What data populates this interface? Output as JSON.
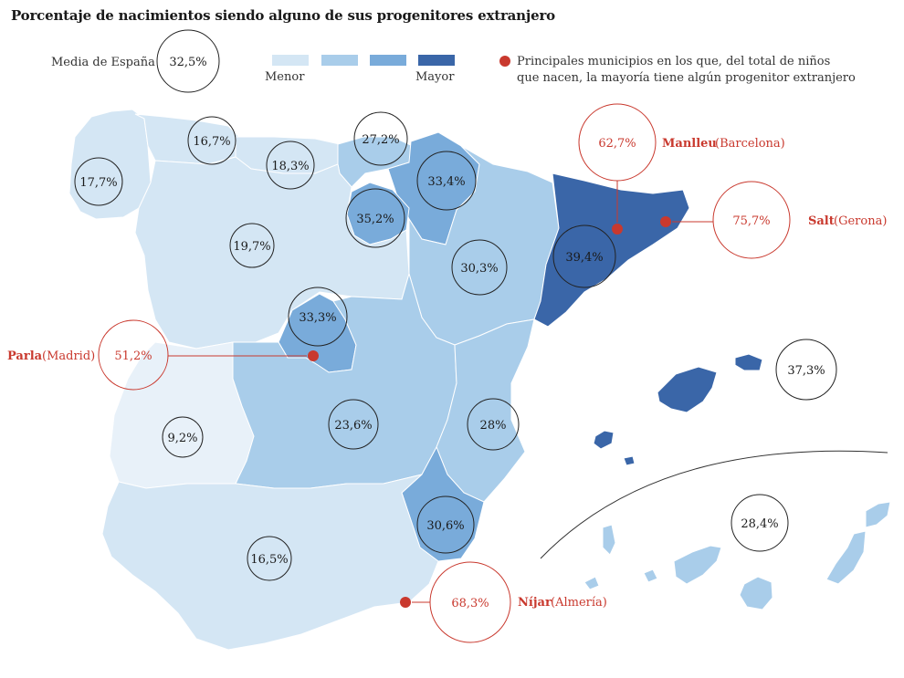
{
  "title": "Porcentaje de nacimientos siendo alguno de sus progenitores extranjero",
  "legend": {
    "average_label": "Media de España",
    "average_value": "32,5%",
    "scale_low": "Menor",
    "scale_high": "Mayor",
    "scale_colors": [
      "#d4e6f4",
      "#a9cdea",
      "#79abda",
      "#3a66a8"
    ],
    "dot_text_1": "Principales municipios en los que, del total de niños",
    "dot_text_2": "que nacen, la mayoría tiene algún progenitor extranjero",
    "dot_color": "#c9392e"
  },
  "regions": {
    "galicia": "17,7%",
    "asturias": "16,7%",
    "cantabria": "18,3%",
    "pais_vasco": "27,2%",
    "navarra": "33,4%",
    "la_rioja": "35,2%",
    "castilla_leon": "19,7%",
    "aragon": "30,3%",
    "cataluna": "39,4%",
    "madrid": "33,3%",
    "extremadura": "9,2%",
    "castilla_la_mancha": "23,6%",
    "valencia": "28%",
    "murcia": "30,6%",
    "andalucia": "16,5%",
    "baleares": "37,3%",
    "canarias": "28,4%"
  },
  "municipalities": {
    "manlleu": {
      "value": "62,7%",
      "name": "Manlleu",
      "province": "(Barcelona)"
    },
    "salt": {
      "value": "75,7%",
      "name": "Salt",
      "province": "(Gerona)"
    },
    "parla": {
      "value": "51,2%",
      "name": "Parla",
      "province": "(Madrid)"
    },
    "nijar": {
      "value": "68,3%",
      "name": "Níjar",
      "province": "(Almería)"
    }
  }
}
